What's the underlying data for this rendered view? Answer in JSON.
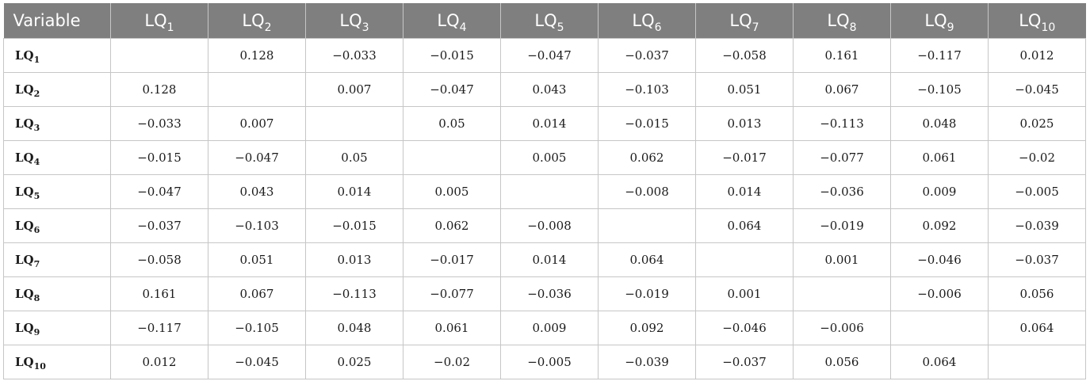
{
  "table": {
    "header_first": "Variable",
    "var_prefix": "LQ",
    "var_numbers": [
      "1",
      "2",
      "3",
      "4",
      "5",
      "6",
      "7",
      "8",
      "9",
      "10"
    ],
    "rows": [
      [
        "",
        "0.128",
        "−0.033",
        "−0.015",
        "−0.047",
        "−0.037",
        "−0.058",
        "0.161",
        "−0.117",
        "0.012"
      ],
      [
        "0.128",
        "",
        "0.007",
        "−0.047",
        "0.043",
        "−0.103",
        "0.051",
        "0.067",
        "−0.105",
        "−0.045"
      ],
      [
        "−0.033",
        "0.007",
        "",
        "0.05",
        "0.014",
        "−0.015",
        "0.013",
        "−0.113",
        "0.048",
        "0.025"
      ],
      [
        "−0.015",
        "−0.047",
        "0.05",
        "",
        "0.005",
        "0.062",
        "−0.017",
        "−0.077",
        "0.061",
        "−0.02"
      ],
      [
        "−0.047",
        "0.043",
        "0.014",
        "0.005",
        "",
        "−0.008",
        "0.014",
        "−0.036",
        "0.009",
        "−0.005"
      ],
      [
        "−0.037",
        "−0.103",
        "−0.015",
        "0.062",
        "−0.008",
        "",
        "0.064",
        "−0.019",
        "0.092",
        "−0.039"
      ],
      [
        "−0.058",
        "0.051",
        "0.013",
        "−0.017",
        "0.014",
        "0.064",
        "",
        "0.001",
        "−0.046",
        "−0.037"
      ],
      [
        "0.161",
        "0.067",
        "−0.113",
        "−0.077",
        "−0.036",
        "−0.019",
        "0.001",
        "",
        "−0.006",
        "0.056"
      ],
      [
        "−0.117",
        "−0.105",
        "0.048",
        "0.061",
        "0.009",
        "0.092",
        "−0.046",
        "−0.006",
        "",
        "0.064"
      ],
      [
        "0.012",
        "−0.045",
        "0.025",
        "−0.02",
        "−0.005",
        "−0.039",
        "−0.037",
        "0.056",
        "0.064",
        ""
      ]
    ]
  },
  "colors": {
    "header_bg": "#7f7f7f",
    "header_text": "#ffffff",
    "grid": "#c6c6c6",
    "cell_text": "#1a1a1a"
  }
}
